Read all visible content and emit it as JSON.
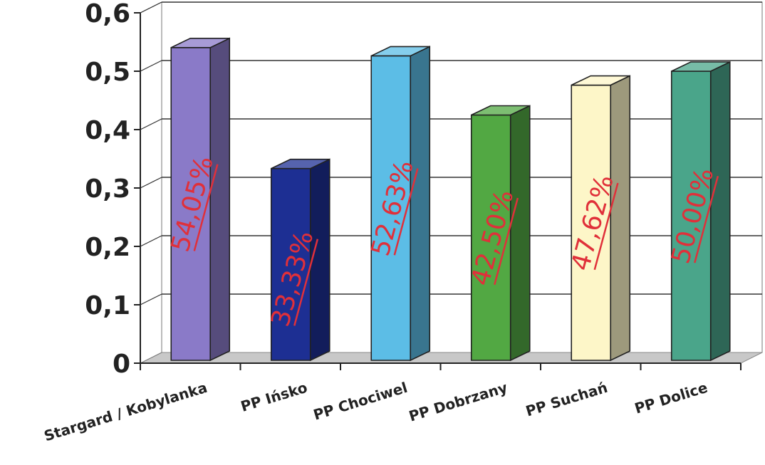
{
  "chart_data": {
    "type": "bar",
    "categories": [
      "Stargard / Kobylanka",
      "PP Ińsko",
      "PP Chociwel",
      "PP Dobrzany",
      "PP Suchań",
      "PP Dolice"
    ],
    "values": [
      0.5405,
      0.3333,
      0.5263,
      0.425,
      0.4762,
      0.5
    ],
    "data_labels": [
      "54,05%",
      "33,33%",
      "52,63%",
      "42,50%",
      "47,62%",
      "50,00%"
    ],
    "ylim": [
      0,
      0.6
    ],
    "y_ticks": [
      "0",
      "0,1",
      "0,2",
      "0,3",
      "0,4",
      "0,5",
      "0,6"
    ],
    "grid": true,
    "style": "3d-column",
    "colors": {
      "bars": [
        "#8a7ac8",
        "#1d2f93",
        "#5cbde6",
        "#52a843",
        "#fdf6c8",
        "#4aa58a"
      ],
      "data_label": "#e0303a",
      "axis_text": "#222222",
      "gridline": "#333333",
      "floor": "#c8c8c8"
    }
  }
}
